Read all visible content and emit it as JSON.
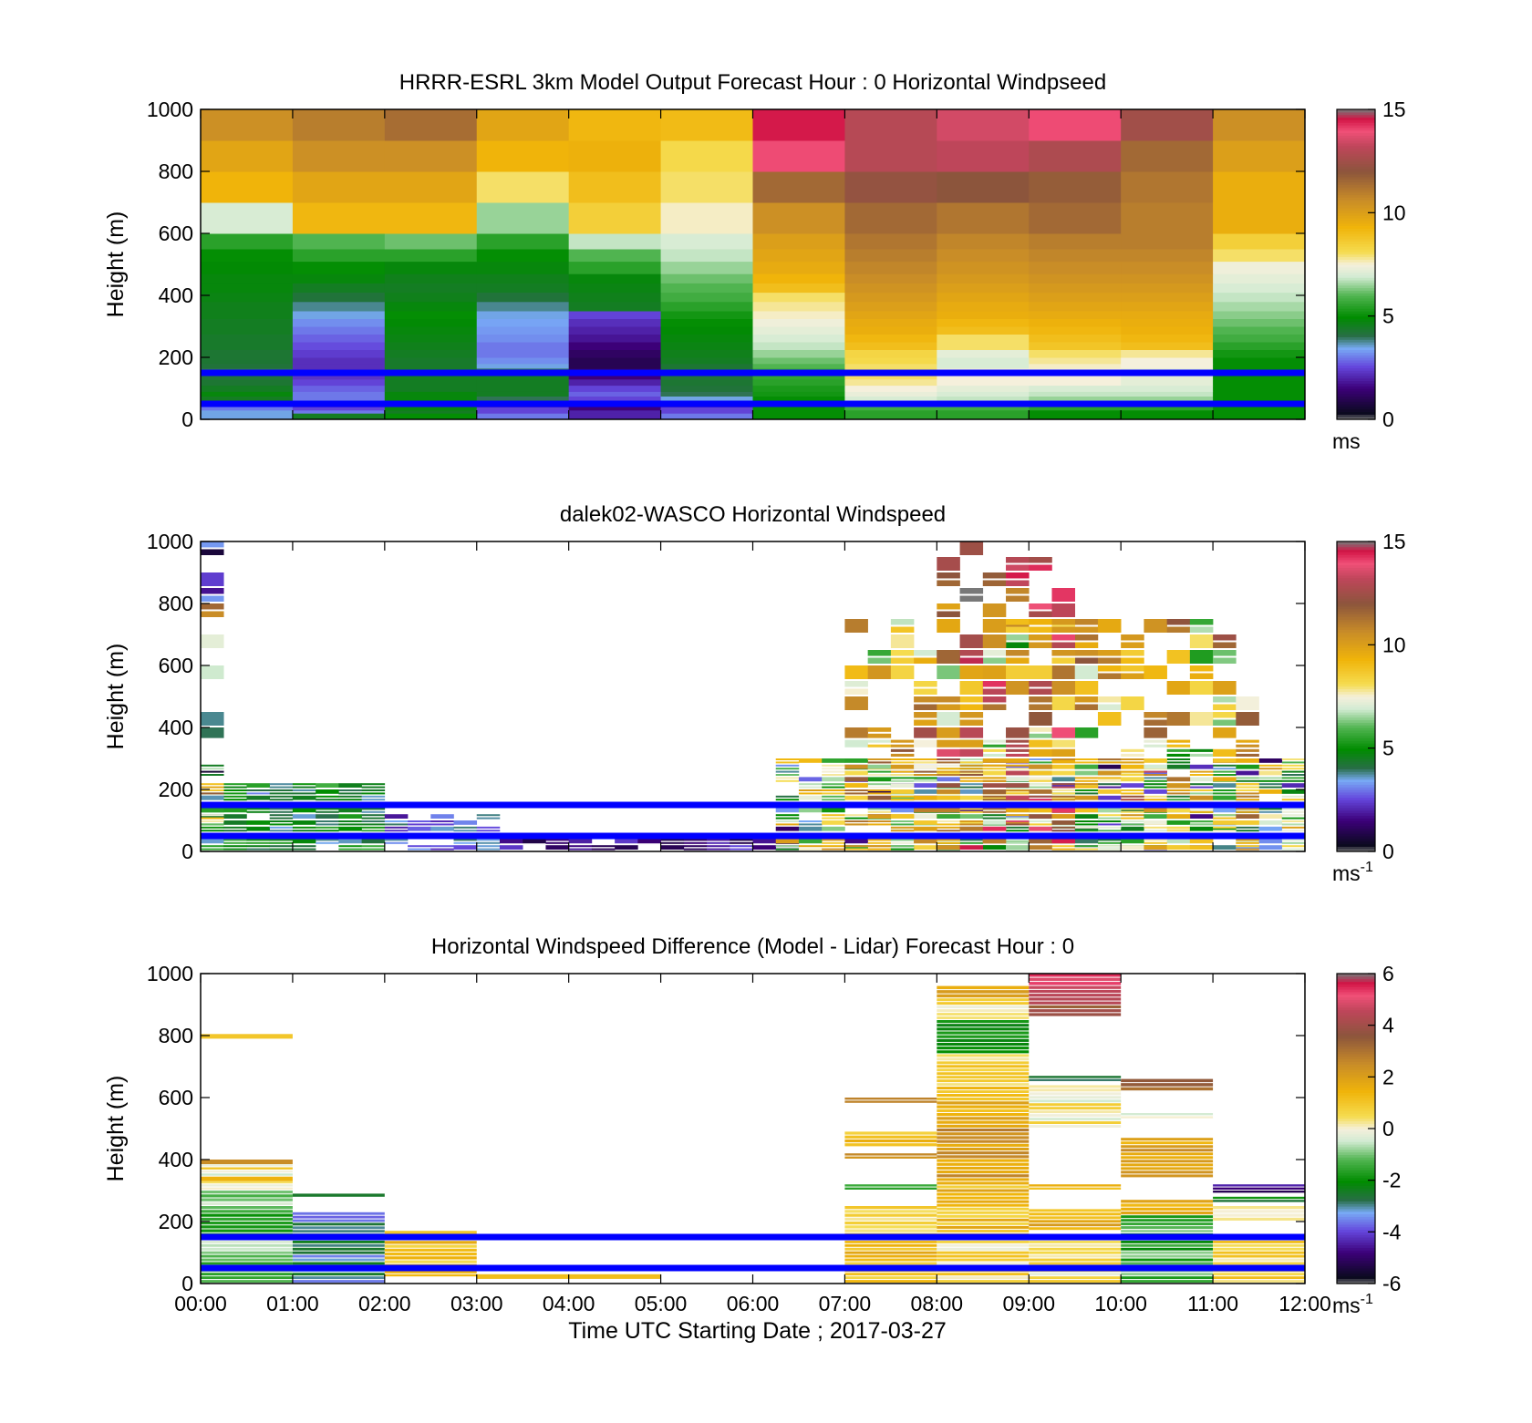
{
  "colors": {
    "overlay_line": "#0000ff",
    "background": "#ffffff",
    "axis": "#000000"
  },
  "xlabel": "Time UTC  Starting Date ; 2017-03-27",
  "xtick_labels": [
    "00:00",
    "01:00",
    "02:00",
    "03:00",
    "04:00",
    "05:00",
    "06:00",
    "07:00",
    "08:00",
    "09:00",
    "10:00",
    "11:00",
    "12:00"
  ],
  "chart_data": [
    {
      "type": "heatmap",
      "title": "HRRR-ESRL 3km Model Output   Forecast Hour : 0 Horizontal Windpseed",
      "ylabel": "Height (m)",
      "xlim": [
        0,
        12
      ],
      "ylim": [
        0,
        1000
      ],
      "yticks": [
        0,
        200,
        400,
        600,
        800,
        1000
      ],
      "colorbar": {
        "min": 0,
        "max": 15,
        "ticks": [
          0,
          5,
          10,
          15
        ],
        "unit": "ms"
      },
      "overlay_lines_m": [
        50,
        150
      ],
      "layer_bounds_m": [
        0,
        20,
        30,
        40,
        50,
        60,
        75,
        90,
        110,
        130,
        150,
        165,
        180,
        200,
        225,
        250,
        275,
        300,
        325,
        350,
        380,
        410,
        440,
        470,
        510,
        550,
        600,
        700,
        800,
        900,
        1000
      ],
      "hours": [
        0,
        1,
        2,
        3,
        4,
        5,
        6,
        7,
        8,
        9,
        10,
        11
      ],
      "values": [
        [
          3.5,
          4.5,
          5.0,
          3.0,
          2.0,
          3.0,
          5.0,
          5.5,
          5.5,
          5.0,
          5.0,
          5.0
        ],
        [
          3.5,
          3.0,
          4.5,
          2.5,
          2.0,
          2.5,
          5.0,
          5.5,
          5.5,
          5.0,
          5.0,
          5.0
        ],
        [
          3.0,
          2.5,
          4.8,
          2.5,
          1.5,
          2.5,
          5.0,
          5.8,
          5.8,
          5.5,
          5.5,
          5.0
        ],
        [
          3.0,
          2.2,
          4.5,
          2.0,
          1.5,
          2.0,
          5.0,
          6.0,
          6.0,
          5.5,
          5.5,
          5.0
        ],
        [
          4.0,
          2.5,
          4.8,
          3.5,
          2.0,
          3.0,
          5.0,
          6.5,
          6.5,
          6.0,
          6.0,
          5.0
        ],
        [
          4.5,
          3.0,
          4.8,
          4.0,
          2.5,
          3.5,
          5.0,
          7.0,
          6.8,
          6.5,
          6.5,
          5.0
        ],
        [
          4.8,
          3.0,
          4.8,
          4.5,
          2.8,
          4.0,
          5.2,
          7.3,
          7.0,
          6.8,
          6.8,
          5.0
        ],
        [
          4.5,
          2.8,
          4.5,
          4.5,
          2.5,
          4.2,
          5.3,
          7.5,
          7.2,
          7.0,
          7.0,
          5.0
        ],
        [
          4.3,
          2.5,
          4.5,
          4.5,
          2.0,
          4.3,
          5.5,
          7.8,
          7.5,
          7.5,
          7.2,
          5.0
        ],
        [
          4.2,
          2.3,
          4.5,
          4.5,
          1.5,
          4.2,
          5.6,
          8.0,
          7.5,
          7.5,
          7.2,
          5.0
        ],
        [
          4.0,
          2.2,
          4.4,
          4.0,
          1.2,
          4.2,
          5.7,
          8.0,
          7.5,
          7.5,
          7.2,
          5.0
        ],
        [
          4.2,
          2.2,
          4.4,
          3.5,
          1.0,
          4.3,
          6.0,
          8.0,
          7.0,
          7.6,
          7.5,
          5.0
        ],
        [
          4.3,
          2.2,
          4.4,
          3.2,
          1.0,
          4.5,
          6.2,
          8.2,
          7.0,
          7.8,
          7.5,
          5.0
        ],
        [
          4.3,
          2.4,
          4.5,
          3.0,
          1.2,
          4.6,
          6.5,
          8.3,
          7.2,
          8.0,
          7.8,
          5.2
        ],
        [
          4.4,
          2.6,
          4.6,
          3.0,
          1.5,
          4.7,
          6.8,
          9.0,
          8.0,
          8.8,
          9.0,
          5.5
        ],
        [
          4.4,
          2.8,
          4.7,
          3.2,
          1.8,
          4.8,
          7.0,
          9.2,
          8.0,
          9.0,
          9.2,
          5.8
        ],
        [
          4.5,
          3.0,
          4.8,
          3.3,
          2.0,
          4.9,
          7.2,
          9.5,
          9.0,
          9.2,
          9.4,
          6.0
        ],
        [
          4.5,
          3.2,
          4.9,
          3.4,
          2.2,
          5.0,
          7.4,
          9.6,
          9.2,
          9.4,
          9.5,
          6.2
        ],
        [
          4.6,
          3.5,
          5.0,
          3.5,
          2.5,
          5.2,
          7.6,
          9.8,
          9.5,
          9.6,
          9.6,
          6.4
        ],
        [
          4.6,
          3.8,
          4.8,
          3.8,
          4.5,
          5.5,
          7.8,
          10.0,
          9.6,
          9.8,
          9.8,
          6.6
        ],
        [
          4.7,
          4.2,
          4.6,
          4.2,
          4.6,
          5.8,
          8.0,
          10.2,
          9.8,
          10.0,
          10.0,
          6.8
        ],
        [
          4.8,
          4.5,
          4.5,
          4.5,
          4.7,
          6.0,
          9.0,
          10.4,
          10.0,
          10.2,
          10.2,
          7.0
        ],
        [
          4.8,
          4.8,
          4.6,
          4.6,
          4.8,
          6.2,
          9.3,
          10.6,
          10.2,
          10.4,
          10.4,
          7.2
        ],
        [
          4.9,
          5.0,
          4.8,
          4.8,
          5.5,
          6.5,
          9.6,
          10.8,
          10.4,
          10.6,
          10.6,
          7.4
        ],
        [
          5.0,
          5.5,
          5.5,
          5.0,
          6.0,
          6.8,
          9.8,
          11.0,
          10.6,
          10.8,
          10.8,
          8.0
        ],
        [
          5.5,
          6.0,
          6.2,
          5.5,
          6.8,
          7.0,
          10.0,
          11.2,
          10.8,
          11.0,
          11.0,
          8.5
        ],
        [
          7.0,
          9.2,
          9.2,
          6.5,
          8.5,
          7.6,
          10.5,
          11.5,
          11.2,
          11.5,
          11.0,
          9.5
        ],
        [
          9.3,
          9.8,
          9.8,
          8.0,
          9.0,
          8.0,
          11.5,
          12.2,
          12.0,
          11.8,
          11.2,
          9.5
        ],
        [
          9.8,
          10.5,
          10.5,
          9.3,
          9.4,
          8.2,
          14.0,
          13.0,
          13.2,
          12.8,
          11.5,
          10.0
        ],
        [
          10.5,
          11.0,
          11.4,
          9.8,
          9.2,
          9.1,
          14.5,
          13.0,
          13.5,
          14.0,
          12.5,
          10.5
        ]
      ]
    },
    {
      "type": "heatmap",
      "title": "dalek02-WASCO  Horizontal Windspeed",
      "ylabel": "Height (m)",
      "xlim": [
        0,
        12
      ],
      "ylim": [
        0,
        1000
      ],
      "yticks": [
        0,
        200,
        400,
        600,
        800,
        1000
      ],
      "colorbar": {
        "min": 0,
        "max": 15,
        "ticks": [
          0,
          5,
          10,
          15
        ],
        "unit": "ms",
        "unit_exponent": "-1"
      },
      "overlay_lines_m": [
        50,
        150
      ],
      "time_step_h": 0.25,
      "layer_bounds_m": [
        0,
        20,
        40,
        60,
        80,
        100,
        120,
        140,
        160,
        180,
        200,
        220,
        240,
        260,
        280,
        300,
        330,
        360,
        400,
        450,
        500,
        550,
        600,
        650,
        700,
        750,
        800,
        850,
        900,
        950,
        1000
      ],
      "data_segments": [
        {
          "t": [
            0.0,
            2.0
          ],
          "top_m": 220,
          "base": 4.5,
          "spread": 1.0
        },
        {
          "t": [
            0.0,
            0.25
          ],
          "top_m": 1000,
          "base": 6.0,
          "spread": 5.0
        },
        {
          "t": [
            2.0,
            3.25
          ],
          "top_m": 120,
          "base": 3.0,
          "spread": 1.0
        },
        {
          "t": [
            3.25,
            6.5
          ],
          "top_m": 40,
          "base": 1.5,
          "spread": 1.0
        },
        {
          "t": [
            6.25,
            12.0
          ],
          "top_m": 300,
          "base": 6.0,
          "spread": 3.5
        },
        {
          "t": [
            7.0,
            11.5
          ],
          "top_m": 750,
          "base": 9.0,
          "spread": 3.0
        },
        {
          "t": [
            8.0,
            9.5
          ],
          "top_m": 1000,
          "base": 11.5,
          "spread": 2.5
        }
      ]
    },
    {
      "type": "heatmap",
      "title": "Horizontal Windspeed Difference (Model - Lidar) Forecast Hour : 0",
      "ylabel": "Height (m)",
      "xlim": [
        0,
        12
      ],
      "ylim": [
        0,
        1000
      ],
      "yticks": [
        0,
        200,
        400,
        600,
        800,
        1000
      ],
      "colorbar": {
        "min": -6,
        "max": 6,
        "ticks": [
          -6,
          -4,
          -2,
          0,
          2,
          4,
          6
        ],
        "unit": "ms",
        "unit_exponent": "-1"
      },
      "overlay_lines_m": [
        50,
        150
      ],
      "bands": [
        {
          "t": [
            0,
            1
          ],
          "y": [
            790,
            805
          ],
          "v": 1.0
        },
        {
          "t": [
            0,
            1
          ],
          "y": [
            385,
            400
          ],
          "v": 2.5
        },
        {
          "t": [
            0,
            1
          ],
          "y": [
            365,
            385
          ],
          "v": 0.5
        },
        {
          "t": [
            0,
            1
          ],
          "y": [
            345,
            365
          ],
          "v": -0.3
        },
        {
          "t": [
            0,
            1
          ],
          "y": [
            330,
            345
          ],
          "v": 1.5
        },
        {
          "t": [
            0,
            1
          ],
          "y": [
            300,
            330
          ],
          "v": 0.0
        },
        {
          "t": [
            0,
            1
          ],
          "y": [
            250,
            300
          ],
          "v": -1.0
        },
        {
          "t": [
            0,
            1
          ],
          "y": [
            150,
            250
          ],
          "v": -1.8
        },
        {
          "t": [
            0,
            1
          ],
          "y": [
            0,
            150
          ],
          "v": -1.0
        },
        {
          "t": [
            1,
            2
          ],
          "y": [
            280,
            290
          ],
          "v": -2.5
        },
        {
          "t": [
            1,
            2
          ],
          "y": [
            150,
            230
          ],
          "v": -3.2
        },
        {
          "t": [
            1,
            2
          ],
          "y": [
            0,
            150
          ],
          "v": -3.0
        },
        {
          "t": [
            2,
            3
          ],
          "y": [
            160,
            170
          ],
          "v": 1.0
        },
        {
          "t": [
            2,
            3
          ],
          "y": [
            50,
            150
          ],
          "v": 1.0
        },
        {
          "t": [
            2,
            3
          ],
          "y": [
            20,
            50
          ],
          "v": 1.0
        },
        {
          "t": [
            3,
            5
          ],
          "y": [
            15,
            30
          ],
          "v": 1.2
        },
        {
          "t": [
            7,
            8
          ],
          "y": [
            580,
            600
          ],
          "v": 2.8
        },
        {
          "t": [
            7,
            8
          ],
          "y": [
            440,
            490
          ],
          "v": 1.0
        },
        {
          "t": [
            7,
            8
          ],
          "y": [
            400,
            420
          ],
          "v": 2.0
        },
        {
          "t": [
            7,
            8
          ],
          "y": [
            300,
            320
          ],
          "v": -2.0
        },
        {
          "t": [
            7,
            8
          ],
          "y": [
            150,
            250
          ],
          "v": 0.8
        },
        {
          "t": [
            7,
            8
          ],
          "y": [
            0,
            150
          ],
          "v": 1.2
        },
        {
          "t": [
            8,
            9
          ],
          "y": [
            920,
            960
          ],
          "v": 1.5
        },
        {
          "t": [
            8,
            9
          ],
          "y": [
            850,
            920
          ],
          "v": 0.3
        },
        {
          "t": [
            8,
            9
          ],
          "y": [
            740,
            850
          ],
          "v": -2.0
        },
        {
          "t": [
            8,
            9
          ],
          "y": [
            600,
            740
          ],
          "v": 0.8
        },
        {
          "t": [
            8,
            9
          ],
          "y": [
            500,
            600
          ],
          "v": 1.5
        },
        {
          "t": [
            8,
            9
          ],
          "y": [
            340,
            500
          ],
          "v": 2.2
        },
        {
          "t": [
            8,
            9
          ],
          "y": [
            150,
            340
          ],
          "v": 1.3
        },
        {
          "t": [
            8,
            9
          ],
          "y": [
            0,
            150
          ],
          "v": 0.5
        },
        {
          "t": [
            9,
            10
          ],
          "y": [
            960,
            1000
          ],
          "v": 5.0
        },
        {
          "t": [
            9,
            10
          ],
          "y": [
            860,
            960
          ],
          "v": 4.0
        },
        {
          "t": [
            9,
            10
          ],
          "y": [
            650,
            670
          ],
          "v": -2.5
        },
        {
          "t": [
            9,
            10
          ],
          "y": [
            500,
            640
          ],
          "v": 0.2
        },
        {
          "t": [
            9,
            10
          ],
          "y": [
            300,
            320
          ],
          "v": 1.2
        },
        {
          "t": [
            9,
            10
          ],
          "y": [
            170,
            240
          ],
          "v": 1.5
        },
        {
          "t": [
            9,
            10
          ],
          "y": [
            0,
            150
          ],
          "v": 0.5
        },
        {
          "t": [
            10,
            11
          ],
          "y": [
            620,
            660
          ],
          "v": 3.0
        },
        {
          "t": [
            10,
            11
          ],
          "y": [
            530,
            550
          ],
          "v": 0.2
        },
        {
          "t": [
            10,
            11
          ],
          "y": [
            340,
            470
          ],
          "v": 2.0
        },
        {
          "t": [
            10,
            11
          ],
          "y": [
            220,
            270
          ],
          "v": 1.2
        },
        {
          "t": [
            10,
            11
          ],
          "y": [
            150,
            220
          ],
          "v": -1.5
        },
        {
          "t": [
            10,
            11
          ],
          "y": [
            0,
            150
          ],
          "v": -1.5
        },
        {
          "t": [
            11,
            12
          ],
          "y": [
            290,
            320
          ],
          "v": -4.5
        },
        {
          "t": [
            11,
            12
          ],
          "y": [
            260,
            280
          ],
          "v": -2.5
        },
        {
          "t": [
            11,
            12
          ],
          "y": [
            200,
            250
          ],
          "v": 0.3
        },
        {
          "t": [
            11,
            12
          ],
          "y": [
            0,
            150
          ],
          "v": 0.8
        }
      ]
    }
  ]
}
